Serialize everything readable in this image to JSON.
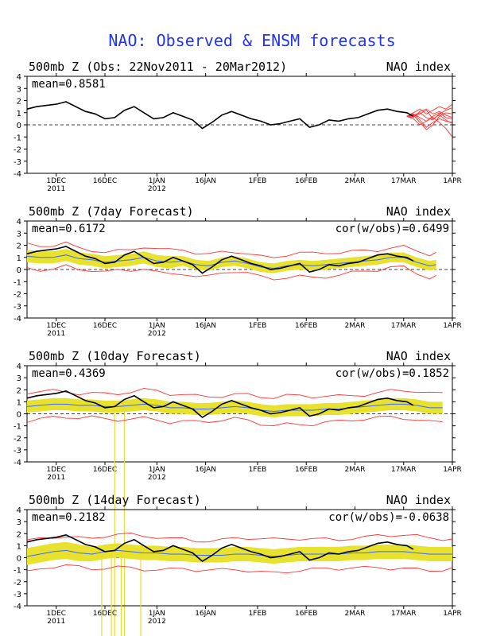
{
  "figure": {
    "title": "NAO: Observed & ENSM forecasts",
    "title_color": "#2233ee"
  },
  "colors": {
    "observed": "#000000",
    "forecast_members": "#ff3333",
    "spread_band": "#e6e22e",
    "ensemble_mean": "#4466ff",
    "spike": "#e8dc3a"
  },
  "x_axis": {
    "start": "2011-11-22",
    "end": "2012-04-01",
    "ticks": [
      {
        "date": "2011-12-01",
        "label": "1DEC",
        "sub": "2011"
      },
      {
        "date": "2011-12-16",
        "label": "16DEC",
        "sub": ""
      },
      {
        "date": "2012-01-01",
        "label": "1JAN",
        "sub": "2012"
      },
      {
        "date": "2012-01-16",
        "label": "16JAN",
        "sub": ""
      },
      {
        "date": "2012-02-01",
        "label": "1FEB",
        "sub": ""
      },
      {
        "date": "2012-02-16",
        "label": "16FEB",
        "sub": ""
      },
      {
        "date": "2012-03-02",
        "label": "2MAR",
        "sub": ""
      },
      {
        "date": "2012-03-17",
        "label": "17MAR",
        "sub": ""
      },
      {
        "date": "2012-04-01",
        "label": "1APR",
        "sub": ""
      }
    ]
  },
  "y_axis": {
    "ylim": [
      -4,
      4
    ],
    "ticks": [
      -4,
      -3,
      -2,
      -1,
      0,
      1,
      2,
      3,
      4
    ]
  },
  "observed": {
    "dates": [
      "2011-11-22",
      "2011-11-25",
      "2011-11-28",
      "2011-12-01",
      "2011-12-04",
      "2011-12-07",
      "2011-12-10",
      "2011-12-13",
      "2011-12-16",
      "2011-12-19",
      "2011-12-22",
      "2011-12-25",
      "2011-12-28",
      "2011-12-31",
      "2012-01-03",
      "2012-01-06",
      "2012-01-09",
      "2012-01-12",
      "2012-01-15",
      "2012-01-18",
      "2012-01-21",
      "2012-01-24",
      "2012-01-27",
      "2012-01-30",
      "2012-02-02",
      "2012-02-05",
      "2012-02-08",
      "2012-02-11",
      "2012-02-14",
      "2012-02-17",
      "2012-02-20",
      "2012-02-23",
      "2012-02-26",
      "2012-02-29",
      "2012-03-03",
      "2012-03-06",
      "2012-03-09",
      "2012-03-12",
      "2012-03-15",
      "2012-03-18",
      "2012-03-20"
    ],
    "values": [
      1.3,
      1.5,
      1.6,
      1.7,
      1.9,
      1.5,
      1.1,
      0.9,
      0.5,
      0.6,
      1.2,
      1.5,
      1.0,
      0.5,
      0.6,
      1.0,
      0.7,
      0.4,
      -0.3,
      0.2,
      0.8,
      1.1,
      0.8,
      0.5,
      0.3,
      0.0,
      0.1,
      0.3,
      0.5,
      -0.2,
      0.0,
      0.4,
      0.3,
      0.5,
      0.6,
      0.9,
      1.2,
      1.3,
      1.1,
      1.0,
      0.7
    ]
  },
  "panels": [
    {
      "title": "500mb Z (Obs: 22Nov2011 - 20Mar2012)",
      "index_label": "NAO index",
      "mean_label": "mean=0.8581",
      "cor_label": "",
      "type": "observed",
      "members": {
        "x": [
          "2012-03-18",
          "2012-03-20",
          "2012-03-22",
          "2012-03-24",
          "2012-03-26",
          "2012-03-28",
          "2012-03-30",
          "2012-04-01"
        ],
        "series": [
          [
            0.7,
            0.8,
            1.0,
            0.6,
            0.4,
            0.9,
            1.2,
            1.4
          ],
          [
            0.7,
            0.9,
            0.4,
            -0.2,
            0.2,
            0.5,
            0.3,
            0.2
          ],
          [
            0.7,
            0.6,
            1.1,
            1.3,
            0.9,
            1.1,
            0.8,
            0.6
          ],
          [
            0.7,
            0.8,
            0.2,
            -0.4,
            0.0,
            0.7,
            1.0,
            0.9
          ],
          [
            0.7,
            1.0,
            1.3,
            0.9,
            1.2,
            1.5,
            1.3,
            1.7
          ],
          [
            0.7,
            0.5,
            0.0,
            0.3,
            0.6,
            0.2,
            -0.3,
            -1.0
          ],
          [
            0.7,
            0.7,
            0.9,
            1.2,
            0.5,
            0.8,
            0.4,
            0.1
          ],
          [
            0.7,
            0.9,
            0.6,
            0.3,
            0.7,
            1.0,
            0.6,
            0.5
          ]
        ]
      }
    },
    {
      "title": "500mb Z (7day Forecast)",
      "index_label": "NAO index",
      "mean_label": "mean=0.6172",
      "cor_label": "cor(w/obs)=0.6499",
      "type": "forecast",
      "band_x": [
        "2011-11-22",
        "2011-11-26",
        "2011-11-30",
        "2011-12-04",
        "2011-12-08",
        "2011-12-12",
        "2011-12-16",
        "2011-12-20",
        "2011-12-24",
        "2011-12-28",
        "2012-01-01",
        "2012-01-05",
        "2012-01-09",
        "2012-01-13",
        "2012-01-17",
        "2012-01-21",
        "2012-01-25",
        "2012-01-29",
        "2012-02-02",
        "2012-02-06",
        "2012-02-10",
        "2012-02-14",
        "2012-02-18",
        "2012-02-22",
        "2012-02-26",
        "2012-03-01",
        "2012-03-05",
        "2012-03-09",
        "2012-03-13",
        "2012-03-17",
        "2012-03-21",
        "2012-03-25",
        "2012-03-27"
      ],
      "mean": [
        1.1,
        1.0,
        1.0,
        1.2,
        0.9,
        0.8,
        0.6,
        0.7,
        0.8,
        1.0,
        0.7,
        0.6,
        0.7,
        0.4,
        0.3,
        0.6,
        0.7,
        0.5,
        0.2,
        0.1,
        0.3,
        0.4,
        0.3,
        0.4,
        0.5,
        0.6,
        0.7,
        0.8,
        1.0,
        1.0,
        0.6,
        0.3,
        0.4
      ],
      "spread": [
        0.5,
        0.5,
        0.5,
        0.5,
        0.5,
        0.5,
        0.5,
        0.5,
        0.5,
        0.5,
        0.5,
        0.5,
        0.4,
        0.4,
        0.4,
        0.4,
        0.4,
        0.4,
        0.4,
        0.4,
        0.4,
        0.4,
        0.4,
        0.4,
        0.4,
        0.4,
        0.4,
        0.4,
        0.4,
        0.4,
        0.4,
        0.4,
        0.4
      ],
      "members_spread": 0.9,
      "spikes": []
    },
    {
      "title": "500mb Z (10day Forecast)",
      "index_label": "NAO index",
      "mean_label": "mean=0.4369",
      "cor_label": "cor(w/obs)=0.1852",
      "type": "forecast",
      "band_x": [
        "2011-11-22",
        "2011-11-26",
        "2011-11-30",
        "2011-12-04",
        "2011-12-08",
        "2011-12-12",
        "2011-12-16",
        "2011-12-20",
        "2011-12-24",
        "2011-12-28",
        "2012-01-01",
        "2012-01-05",
        "2012-01-09",
        "2012-01-13",
        "2012-01-17",
        "2012-01-21",
        "2012-01-25",
        "2012-01-29",
        "2012-02-02",
        "2012-02-06",
        "2012-02-10",
        "2012-02-14",
        "2012-02-18",
        "2012-02-22",
        "2012-02-26",
        "2012-03-01",
        "2012-03-05",
        "2012-03-09",
        "2012-03-13",
        "2012-03-17",
        "2012-03-21",
        "2012-03-25",
        "2012-03-29"
      ],
      "mean": [
        0.6,
        0.7,
        0.8,
        0.8,
        0.7,
        0.7,
        0.6,
        0.6,
        0.7,
        0.8,
        0.7,
        0.5,
        0.5,
        0.4,
        0.4,
        0.5,
        0.6,
        0.5,
        0.3,
        0.2,
        0.3,
        0.3,
        0.3,
        0.4,
        0.4,
        0.5,
        0.6,
        0.7,
        0.8,
        0.8,
        0.7,
        0.5,
        0.5
      ],
      "spread": [
        0.5,
        0.5,
        0.5,
        0.5,
        0.5,
        0.5,
        0.5,
        0.5,
        0.5,
        0.5,
        0.5,
        0.5,
        0.5,
        0.5,
        0.5,
        0.5,
        0.5,
        0.5,
        0.5,
        0.5,
        0.5,
        0.5,
        0.5,
        0.5,
        0.5,
        0.5,
        0.5,
        0.5,
        0.5,
        0.5,
        0.5,
        0.5,
        0.5
      ],
      "members_spread": 1.1,
      "spikes": [
        "2011-12-19",
        "2011-12-22"
      ]
    },
    {
      "title": "500mb Z (14day Forecast)",
      "index_label": "NAO index",
      "mean_label": "mean=0.2182",
      "cor_label": "cor(w/obs)=-0.0638",
      "type": "forecast",
      "band_x": [
        "2011-11-22",
        "2011-11-26",
        "2011-11-30",
        "2011-12-04",
        "2011-12-08",
        "2011-12-12",
        "2011-12-16",
        "2011-12-20",
        "2011-12-24",
        "2011-12-28",
        "2012-01-01",
        "2012-01-05",
        "2012-01-09",
        "2012-01-13",
        "2012-01-17",
        "2012-01-21",
        "2012-01-25",
        "2012-01-29",
        "2012-02-02",
        "2012-02-06",
        "2012-02-10",
        "2012-02-14",
        "2012-02-18",
        "2012-02-22",
        "2012-02-26",
        "2012-03-01",
        "2012-03-05",
        "2012-03-09",
        "2012-03-13",
        "2012-03-17",
        "2012-03-21",
        "2012-03-25",
        "2012-03-29",
        "2012-04-01"
      ],
      "mean": [
        0.1,
        0.3,
        0.5,
        0.6,
        0.4,
        0.3,
        0.5,
        0.6,
        0.5,
        0.4,
        0.4,
        0.3,
        0.3,
        0.2,
        0.2,
        0.2,
        0.3,
        0.3,
        0.2,
        0.1,
        0.2,
        0.3,
        0.3,
        0.3,
        0.3,
        0.4,
        0.4,
        0.5,
        0.5,
        0.5,
        0.4,
        0.3,
        0.3,
        0.3
      ],
      "spread": [
        0.7,
        0.7,
        0.7,
        0.7,
        0.7,
        0.6,
        0.6,
        0.6,
        0.6,
        0.6,
        0.6,
        0.6,
        0.6,
        0.6,
        0.6,
        0.6,
        0.6,
        0.6,
        0.6,
        0.6,
        0.6,
        0.6,
        0.6,
        0.6,
        0.6,
        0.6,
        0.6,
        0.6,
        0.6,
        0.6,
        0.6,
        0.6,
        0.6,
        0.6
      ],
      "members_spread": 1.3,
      "spikes": [
        "2011-12-15",
        "2011-12-18",
        "2011-12-21",
        "2011-12-27"
      ]
    }
  ],
  "chart_data": [
    {
      "type": "line",
      "title": "500mb Z (Obs: 22Nov2011 - 20Mar2012)",
      "series": [
        {
          "name": "",
          "values": "observed.values"
        }
      ],
      "ylim": [
        -4,
        4
      ]
    },
    {
      "type": "area",
      "title": "500mb Z (7day Forecast)",
      "ylim": [
        -4,
        4
      ]
    },
    {
      "type": "area",
      "title": "500mb Z (10day Forecast)",
      "ylim": [
        -4,
        4
      ]
    },
    {
      "type": "area",
      "title": "500mb Z (14day Forecast)",
      "ylim": [
        -4,
        4
      ]
    }
  ]
}
